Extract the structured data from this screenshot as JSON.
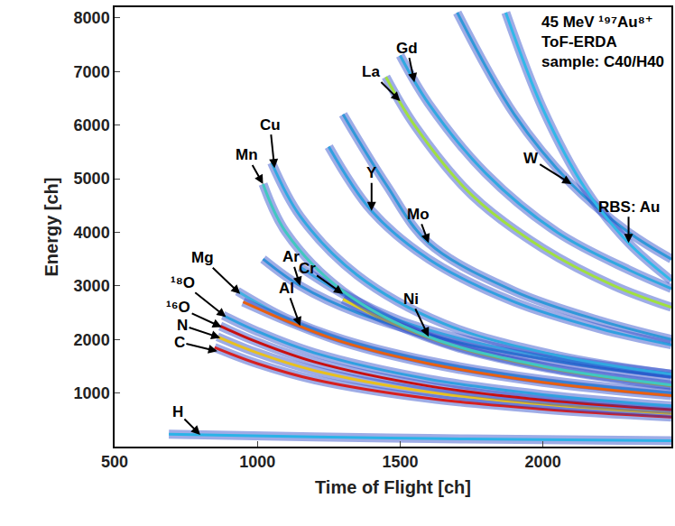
{
  "chart_data": {
    "type": "line",
    "xlabel": "Time of Flight [ch]",
    "ylabel": "Energy [ch]",
    "info": [
      "45 MeV ¹⁹⁷Au⁸⁺",
      "ToF-ERDA",
      "sample: C40/H40"
    ],
    "xlim": [
      500,
      2450
    ],
    "ylim": [
      0,
      8200
    ],
    "xticks": [
      500,
      1000,
      1500,
      2000
    ],
    "yticks": [
      1000,
      2000,
      3000,
      4000,
      5000,
      6000,
      7000,
      8000
    ],
    "grid": false,
    "series": [
      {
        "name": "H",
        "color": "#2bb3e8",
        "x": [
          690,
          900,
          1200,
          1600,
          2000,
          2450
        ],
        "values": [
          230,
          210,
          180,
          150,
          130,
          110
        ],
        "label_at": [
          800,
          220
        ]
      },
      {
        "name": "C",
        "color": "#d62020",
        "x": [
          850,
          1000,
          1200,
          1600,
          2000,
          2450
        ],
        "values": [
          1850,
          1550,
          1250,
          900,
          700,
          550
        ],
        "label_at": [
          860,
          1780
        ]
      },
      {
        "name": "N",
        "color": "#e8c020",
        "x": [
          860,
          1000,
          1200,
          1600,
          2000,
          2450
        ],
        "values": [
          2050,
          1750,
          1420,
          1020,
          790,
          620
        ],
        "label_at": [
          870,
          2030
        ]
      },
      {
        "name": "¹⁶O",
        "color": "#c81010",
        "x": [
          870,
          1000,
          1200,
          1600,
          2000,
          2450
        ],
        "values": [
          2250,
          1950,
          1580,
          1130,
          870,
          690
        ],
        "label_at": [
          875,
          2230
        ]
      },
      {
        "name": "¹⁸O",
        "color": "#30a0e0",
        "x": [
          880,
          1000,
          1200,
          1600,
          2000,
          2450
        ],
        "values": [
          2450,
          2150,
          1750,
          1260,
          970,
          760
        ],
        "label_at": [
          890,
          2420
        ]
      },
      {
        "name": "Mg",
        "color": "#40b0e0",
        "x": [
          930,
          1100,
          1300,
          1600,
          2000,
          2450
        ],
        "values": [
          2900,
          2400,
          2000,
          1600,
          1250,
          1000
        ],
        "label_at": [
          940,
          2850
        ]
      },
      {
        "name": "Al",
        "color": "#e86010",
        "x": [
          950,
          1100,
          1300,
          1600,
          2000,
          2450
        ],
        "values": [
          2700,
          2350,
          1950,
          1550,
          1200,
          950
        ],
        "label_at": [
          1150,
          2250
        ]
      },
      {
        "name": "Ar",
        "color": "#3090d8",
        "x": [
          1020,
          1150,
          1350,
          1700,
          2100,
          2450
        ],
        "values": [
          3500,
          3000,
          2500,
          1950,
          1550,
          1300
        ],
        "label_at": [
          1150,
          3000
        ]
      },
      {
        "name": "Cr",
        "color": "#3aa0e0",
        "x": [
          1150,
          1300,
          1500,
          1800,
          2100,
          2450
        ],
        "values": [
          3350,
          2850,
          2350,
          1900,
          1600,
          1350
        ],
        "label_at": [
          1300,
          2850
        ]
      },
      {
        "name": "Ni",
        "color": "#e0d020",
        "x": [
          1300,
          1450,
          1700,
          2000,
          2250,
          2450
        ],
        "values": [
          2750,
          2350,
          1850,
          1480,
          1270,
          1130
        ],
        "label_at": [
          1600,
          2050
        ]
      },
      {
        "name": "Mn",
        "color": "#40c8c0",
        "x": [
          1020,
          1100,
          1300,
          1600,
          2000,
          2450
        ],
        "values": [
          4900,
          4000,
          2900,
          2050,
          1500,
          1150
        ],
        "label_at": [
          1020,
          4900
        ]
      },
      {
        "name": "Cu",
        "color": "#30a8e0",
        "x": [
          1050,
          1150,
          1350,
          1650,
          2050,
          2450
        ],
        "values": [
          5300,
          4300,
          3200,
          2300,
          1700,
          1350
        ],
        "label_at": [
          1060,
          5200
        ]
      },
      {
        "name": "Y",
        "color": "#30a0e0",
        "x": [
          1250,
          1400,
          1600,
          1900,
          2200,
          2450
        ],
        "values": [
          5600,
          4400,
          3500,
          2700,
          2200,
          1900
        ],
        "label_at": [
          1400,
          4400
        ]
      },
      {
        "name": "Mo",
        "color": "#3098d8",
        "x": [
          1300,
          1450,
          1600,
          1900,
          2200,
          2450
        ],
        "values": [
          6200,
          4900,
          3800,
          2900,
          2350,
          2000
        ],
        "label_at": [
          1600,
          3800
        ]
      },
      {
        "name": "La",
        "color": "#a0e040",
        "x": [
          1450,
          1550,
          1750,
          2000,
          2250,
          2450
        ],
        "values": [
          6900,
          6000,
          4700,
          3700,
          3000,
          2600
        ],
        "label_at": [
          1500,
          6450
        ]
      },
      {
        "name": "Gd",
        "color": "#30a8e0",
        "x": [
          1500,
          1600,
          1800,
          2050,
          2300,
          2450
        ],
        "values": [
          7300,
          6400,
          5100,
          4000,
          3300,
          2950
        ],
        "label_at": [
          1550,
          6800
        ]
      },
      {
        "name": "W",
        "color": "#3098d8",
        "x": [
          1700,
          1900,
          2100,
          2300,
          2450
        ],
        "values": [
          8100,
          6200,
          4900,
          4000,
          3500
        ],
        "label_at": [
          2100,
          4900
        ]
      },
      {
        "name": "RBS: Au",
        "color": "#30b8e8",
        "x": [
          1870,
          2000,
          2150,
          2300,
          2450
        ],
        "values": [
          8100,
          6300,
          4800,
          3800,
          3100
        ],
        "label_at": [
          2300,
          3800
        ]
      }
    ]
  }
}
